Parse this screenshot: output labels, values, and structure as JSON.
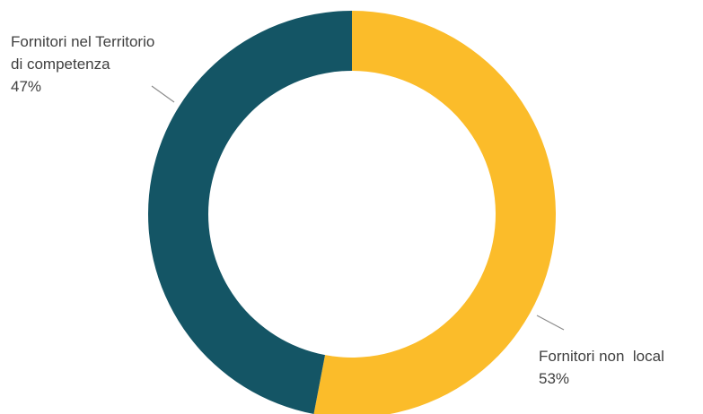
{
  "chart_data": {
    "type": "pie",
    "variant": "donut",
    "title": "",
    "slices": [
      {
        "label_lines": [
          "Fornitori non  local"
        ],
        "value": 53,
        "value_label": "53%",
        "color": "#FBBC2A"
      },
      {
        "label_lines": [
          "Fornitori nel Territorio",
          "di competenza"
        ],
        "value": 47,
        "value_label": "47%",
        "color": "#145565"
      }
    ],
    "start_angle": "12 o'clock",
    "direction": "clockwise",
    "legend": "none"
  }
}
